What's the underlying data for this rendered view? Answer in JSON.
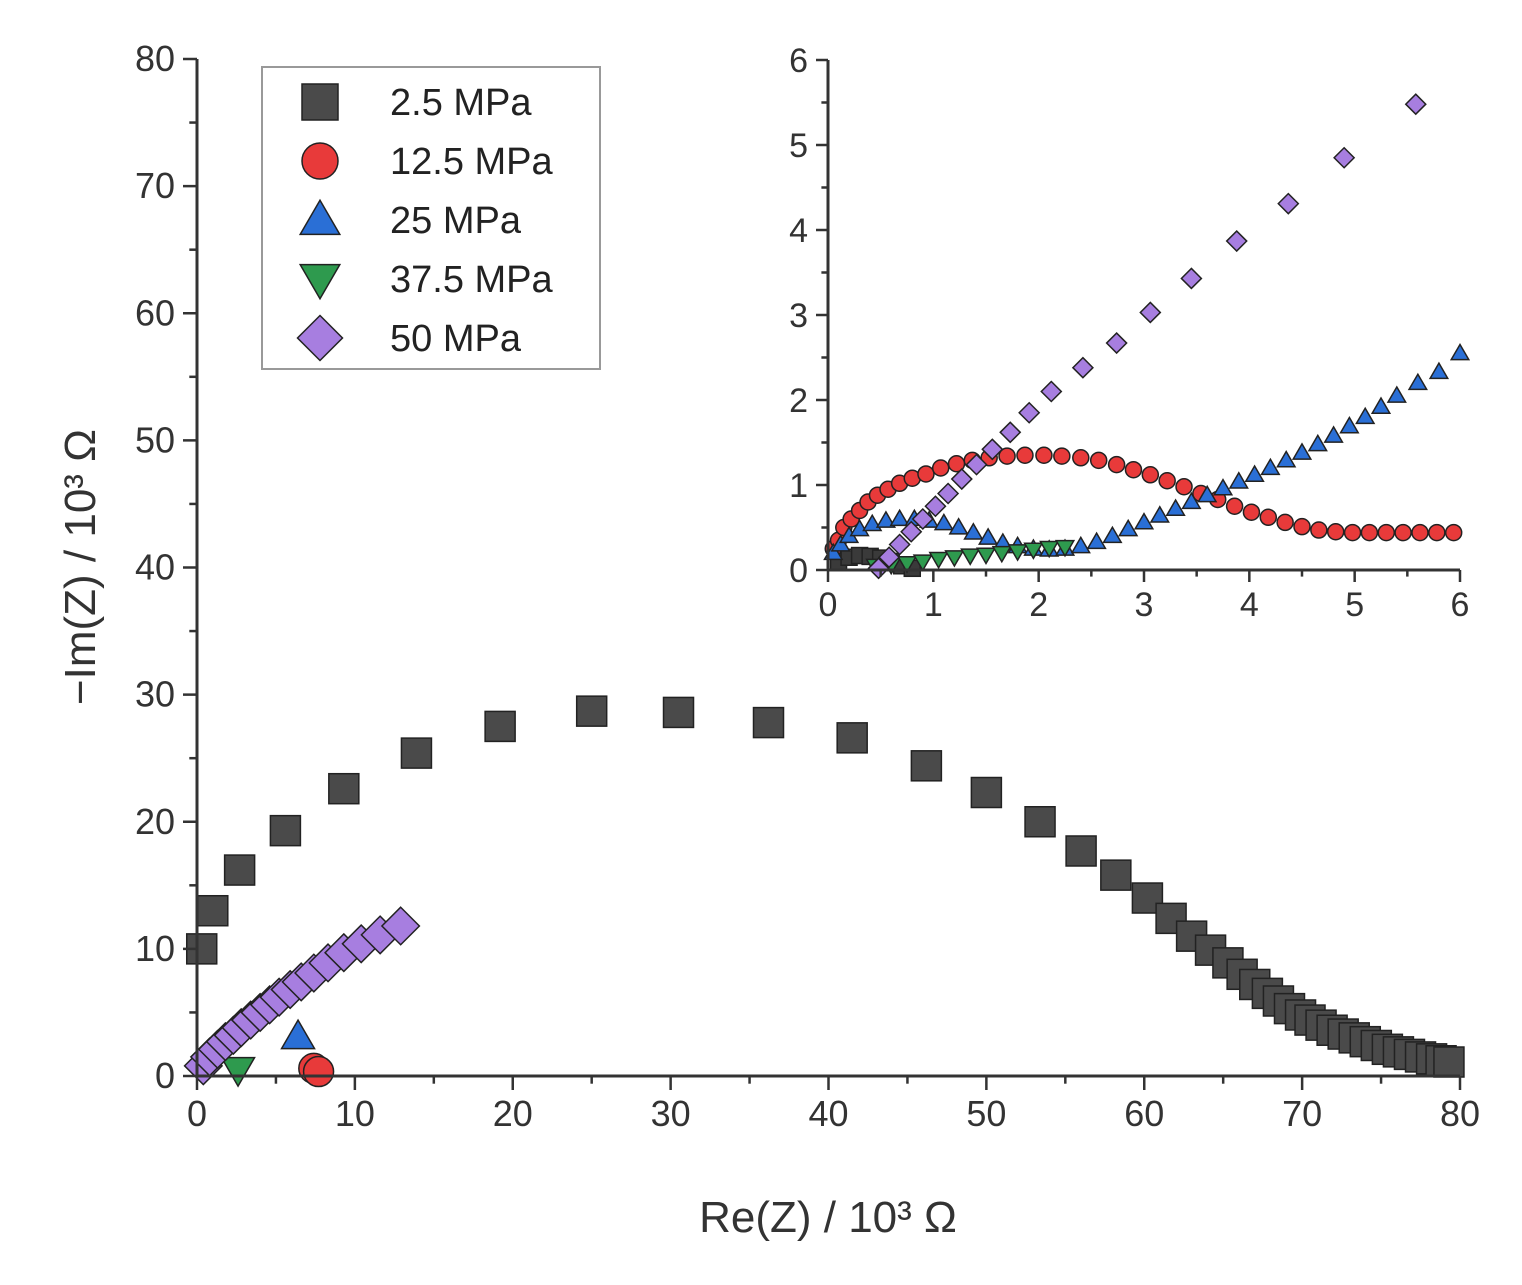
{
  "chart_data": [
    {
      "type": "scatter",
      "title": "",
      "xlabel": "Re(Z) / 10³ Ω",
      "ylabel": "−Im(Z) / 10³ Ω",
      "xlim": [
        0,
        80
      ],
      "ylim": [
        0,
        80
      ],
      "x_ticks": [
        "0",
        "10",
        "20",
        "30",
        "40",
        "50",
        "60",
        "70",
        "80"
      ],
      "y_ticks": [
        "0",
        "10",
        "20",
        "30",
        "40",
        "50",
        "60",
        "70",
        "80"
      ],
      "grid": false,
      "legend_position": "top-left",
      "series": [
        {
          "name": "2.5 MPa",
          "marker": "square",
          "color": "#4a4a4a",
          "points": [
            [
              0.3,
              10
            ],
            [
              1,
              13
            ],
            [
              2.7,
              16.2
            ],
            [
              5.6,
              19.3
            ],
            [
              9.3,
              22.6
            ],
            [
              13.9,
              25.4
            ],
            [
              19.2,
              27.5
            ],
            [
              25,
              28.7
            ],
            [
              30.5,
              28.6
            ],
            [
              36.2,
              27.8
            ],
            [
              41.5,
              26.6
            ],
            [
              46.2,
              24.4
            ],
            [
              50,
              22.3
            ],
            [
              53.4,
              20
            ],
            [
              56,
              17.7
            ],
            [
              58.2,
              15.8
            ],
            [
              60.2,
              14
            ],
            [
              61.7,
              12.4
            ],
            [
              63,
              11
            ],
            [
              64.2,
              9.9
            ],
            [
              65.3,
              8.9
            ],
            [
              66.2,
              8
            ],
            [
              67,
              7.2
            ],
            [
              67.8,
              6.5
            ],
            [
              68.5,
              5.9
            ],
            [
              69.2,
              5.3
            ],
            [
              69.9,
              4.8
            ],
            [
              70.5,
              4.4
            ],
            [
              71.2,
              4
            ],
            [
              71.9,
              3.6
            ],
            [
              72.6,
              3.3
            ],
            [
              73.3,
              3
            ],
            [
              74,
              2.7
            ],
            [
              74.7,
              2.4
            ],
            [
              75.4,
              2.1
            ],
            [
              76.1,
              1.9
            ],
            [
              76.8,
              1.7
            ],
            [
              77.5,
              1.5
            ],
            [
              78.2,
              1.35
            ],
            [
              78.8,
              1.2
            ],
            [
              79.3,
              1.1
            ]
          ]
        },
        {
          "name": "12.5 MPa",
          "marker": "circle",
          "color": "#e83a3a",
          "points": [
            [
              7.4,
              0.6
            ],
            [
              7.7,
              0.35
            ]
          ]
        },
        {
          "name": "25 MPa",
          "marker": "triangle-up",
          "color": "#2a6fd6",
          "points": [
            [
              6.4,
              3.1
            ]
          ]
        },
        {
          "name": "37.5 MPa",
          "marker": "triangle-down",
          "color": "#2e9a4e",
          "points": [
            [
              2.6,
              0.5
            ]
          ]
        },
        {
          "name": "50 MPa",
          "marker": "diamond",
          "color": "#a77ee0",
          "points": [
            [
              0.4,
              0.8
            ],
            [
              0.8,
              1.5
            ],
            [
              1.3,
              2.1
            ],
            [
              1.8,
              2.7
            ],
            [
              2.3,
              3.2
            ],
            [
              2.8,
              3.8
            ],
            [
              3.4,
              4.4
            ],
            [
              4,
              5
            ],
            [
              4.6,
              5.6
            ],
            [
              5.2,
              6.2
            ],
            [
              5.9,
              6.8
            ],
            [
              6.6,
              7.4
            ],
            [
              7.4,
              8.1
            ],
            [
              8.3,
              8.9
            ],
            [
              9.3,
              9.7
            ],
            [
              10.4,
              10.4
            ],
            [
              11.6,
              11.1
            ],
            [
              12.9,
              11.8
            ]
          ]
        }
      ]
    },
    {
      "type": "scatter",
      "title": "",
      "xlabel": "",
      "ylabel": "",
      "xlim": [
        0,
        6
      ],
      "ylim": [
        0,
        6
      ],
      "x_ticks": [
        "0",
        "1",
        "2",
        "3",
        "4",
        "5",
        "6"
      ],
      "y_ticks": [
        "0",
        "1",
        "2",
        "3",
        "4",
        "5",
        "6"
      ],
      "grid": false,
      "series": [
        {
          "marker": "square",
          "color": "#3a3a3a",
          "points": [
            [
              0.1,
              0.1
            ],
            [
              0.2,
              0.15
            ],
            [
              0.3,
              0.17
            ],
            [
              0.4,
              0.16
            ],
            [
              0.5,
              0.14
            ],
            [
              0.6,
              0.1
            ],
            [
              0.7,
              0.05
            ],
            [
              0.8,
              0.02
            ]
          ]
        },
        {
          "marker": "circle",
          "color": "#e83a3a",
          "points": [
            [
              0.05,
              0.25
            ],
            [
              0.1,
              0.35
            ],
            [
              0.15,
              0.5
            ],
            [
              0.22,
              0.6
            ],
            [
              0.3,
              0.7
            ],
            [
              0.38,
              0.8
            ],
            [
              0.47,
              0.88
            ],
            [
              0.57,
              0.95
            ],
            [
              0.68,
              1.02
            ],
            [
              0.8,
              1.08
            ],
            [
              0.93,
              1.13
            ],
            [
              1.07,
              1.2
            ],
            [
              1.22,
              1.25
            ],
            [
              1.37,
              1.29
            ],
            [
              1.53,
              1.32
            ],
            [
              1.7,
              1.34
            ],
            [
              1.87,
              1.35
            ],
            [
              2.05,
              1.35
            ],
            [
              2.22,
              1.34
            ],
            [
              2.4,
              1.32
            ],
            [
              2.57,
              1.29
            ],
            [
              2.74,
              1.24
            ],
            [
              2.9,
              1.18
            ],
            [
              3.06,
              1.12
            ],
            [
              3.22,
              1.05
            ],
            [
              3.38,
              0.98
            ],
            [
              3.54,
              0.9
            ],
            [
              3.7,
              0.83
            ],
            [
              3.86,
              0.75
            ],
            [
              4.02,
              0.68
            ],
            [
              4.18,
              0.62
            ],
            [
              4.34,
              0.56
            ],
            [
              4.5,
              0.51
            ],
            [
              4.66,
              0.47
            ],
            [
              4.82,
              0.45
            ],
            [
              4.98,
              0.44
            ],
            [
              5.14,
              0.44
            ],
            [
              5.3,
              0.44
            ],
            [
              5.46,
              0.44
            ],
            [
              5.62,
              0.44
            ],
            [
              5.78,
              0.44
            ],
            [
              5.94,
              0.44
            ]
          ]
        },
        {
          "marker": "triangle-up",
          "color": "#2a6fd6",
          "points": [
            [
              0.05,
              0.2
            ],
            [
              0.12,
              0.3
            ],
            [
              0.2,
              0.4
            ],
            [
              0.3,
              0.48
            ],
            [
              0.42,
              0.54
            ],
            [
              0.55,
              0.58
            ],
            [
              0.68,
              0.6
            ],
            [
              0.82,
              0.6
            ],
            [
              0.96,
              0.58
            ],
            [
              1.1,
              0.55
            ],
            [
              1.24,
              0.5
            ],
            [
              1.38,
              0.44
            ],
            [
              1.52,
              0.38
            ],
            [
              1.66,
              0.32
            ],
            [
              1.8,
              0.28
            ],
            [
              1.95,
              0.25
            ],
            [
              2.1,
              0.24
            ],
            [
              2.25,
              0.25
            ],
            [
              2.4,
              0.28
            ],
            [
              2.55,
              0.33
            ],
            [
              2.7,
              0.4
            ],
            [
              2.85,
              0.48
            ],
            [
              3,
              0.56
            ],
            [
              3.15,
              0.64
            ],
            [
              3.3,
              0.72
            ],
            [
              3.45,
              0.8
            ],
            [
              3.6,
              0.88
            ],
            [
              3.75,
              0.96
            ],
            [
              3.9,
              1.04
            ],
            [
              4.05,
              1.12
            ],
            [
              4.2,
              1.2
            ],
            [
              4.35,
              1.29
            ],
            [
              4.5,
              1.38
            ],
            [
              4.65,
              1.48
            ],
            [
              4.8,
              1.58
            ],
            [
              4.95,
              1.69
            ],
            [
              5.1,
              1.8
            ],
            [
              5.25,
              1.92
            ],
            [
              5.4,
              2.05
            ],
            [
              5.6,
              2.2
            ],
            [
              5.8,
              2.33
            ],
            [
              6.0,
              2.55
            ]
          ]
        },
        {
          "marker": "triangle-down",
          "color": "#2e9a4e",
          "points": [
            [
              0.45,
              0.05
            ],
            [
              0.6,
              0.06
            ],
            [
              0.75,
              0.08
            ],
            [
              0.9,
              0.1
            ],
            [
              1.05,
              0.13
            ],
            [
              1.2,
              0.15
            ],
            [
              1.35,
              0.17
            ],
            [
              1.5,
              0.18
            ],
            [
              1.65,
              0.2
            ],
            [
              1.8,
              0.22
            ],
            [
              1.95,
              0.24
            ],
            [
              2.1,
              0.26
            ],
            [
              2.25,
              0.27
            ]
          ]
        },
        {
          "marker": "diamond",
          "color": "#a77ee0",
          "points": [
            [
              0.48,
              0.02
            ],
            [
              0.58,
              0.15
            ],
            [
              0.68,
              0.3
            ],
            [
              0.79,
              0.45
            ],
            [
              0.9,
              0.6
            ],
            [
              1.02,
              0.75
            ],
            [
              1.14,
              0.9
            ],
            [
              1.27,
              1.07
            ],
            [
              1.41,
              1.24
            ],
            [
              1.56,
              1.42
            ],
            [
              1.73,
              1.62
            ],
            [
              1.91,
              1.85
            ],
            [
              2.12,
              2.1
            ],
            [
              2.42,
              2.38
            ],
            [
              2.74,
              2.67
            ],
            [
              3.06,
              3.03
            ],
            [
              3.45,
              3.43
            ],
            [
              3.88,
              3.87
            ],
            [
              4.37,
              4.31
            ],
            [
              4.9,
              4.85
            ],
            [
              5.58,
              5.48
            ]
          ]
        }
      ]
    }
  ]
}
